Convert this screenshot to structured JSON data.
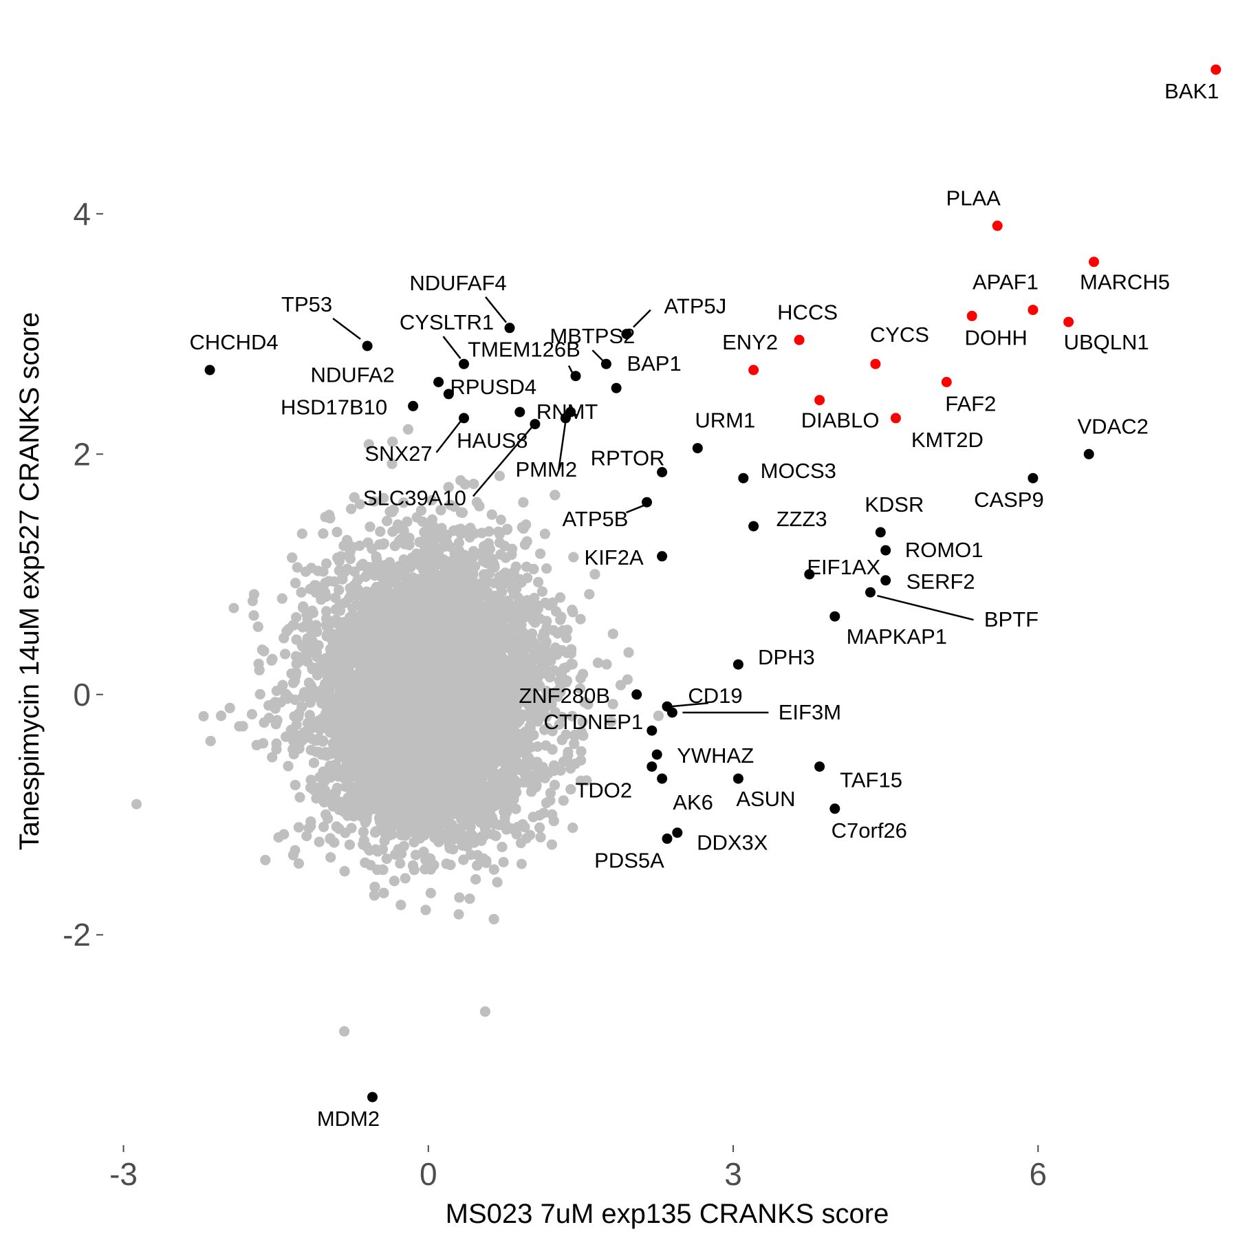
{
  "chart_data": {
    "type": "scatter",
    "title": "",
    "xlabel": "MS023 7uM exp135 CRANKS score",
    "ylabel": "Tanespimycin 14uM exp527 CRANKS score",
    "xlim": [
      -3.2,
      7.9
    ],
    "ylim": [
      -3.75,
      5.55
    ],
    "xticks": [
      -3,
      0,
      3,
      6
    ],
    "yticks": [
      -2,
      0,
      2,
      4
    ],
    "grid": false,
    "legend": "none",
    "colors": {
      "background": "#bfbfbf",
      "highlight": "#ff0000",
      "labeled": "#000000"
    },
    "background_points": {
      "description_count": 18000,
      "x_mean": 0.0,
      "x_sd": 0.55,
      "y_mean": 0.0,
      "y_sd": 0.55
    },
    "series": [
      {
        "name": "red",
        "color": "#ff0000",
        "points": [
          {
            "label": "BAK1",
            "x": 7.75,
            "y": 5.2
          },
          {
            "label": "PLAA",
            "x": 5.6,
            "y": 3.9
          },
          {
            "label": "MARCH5",
            "x": 6.55,
            "y": 3.6
          },
          {
            "label": "APAF1",
            "x": 5.95,
            "y": 3.2
          },
          {
            "label": "DOHH",
            "x": 5.35,
            "y": 3.15
          },
          {
            "label": "UBQLN1",
            "x": 6.3,
            "y": 3.1
          },
          {
            "label": "HCCS",
            "x": 3.65,
            "y": 2.95
          },
          {
            "label": "CYCS",
            "x": 4.4,
            "y": 2.75
          },
          {
            "label": "ENY2",
            "x": 3.2,
            "y": 2.7
          },
          {
            "label": "FAF2",
            "x": 5.1,
            "y": 2.6
          },
          {
            "label": "DIABLO",
            "x": 3.85,
            "y": 2.45
          },
          {
            "label": "KMT2D",
            "x": 4.6,
            "y": 2.3
          }
        ]
      },
      {
        "name": "black",
        "color": "#000000",
        "points": [
          {
            "label": "VDAC2",
            "x": 6.5,
            "y": 2.0
          },
          {
            "label": "CASP9",
            "x": 5.95,
            "y": 1.8
          },
          {
            "label": "CHCHD4",
            "x": -2.15,
            "y": 2.7
          },
          {
            "label": "TP53",
            "x": -0.6,
            "y": 2.9
          },
          {
            "label": "NDUFAF4",
            "x": 0.8,
            "y": 3.05
          },
          {
            "label": "CYSLTR1",
            "x": 0.35,
            "y": 2.75
          },
          {
            "label": "MBTPS2",
            "x": 1.75,
            "y": 2.75
          },
          {
            "label": "ATP5J",
            "x": 1.95,
            "y": 3.0
          },
          {
            "label": "TMEM126B",
            "x": 1.45,
            "y": 2.65
          },
          {
            "label": "BAP1",
            "x": 1.85,
            "y": 2.55
          },
          {
            "label": "NDUFA2",
            "x": 0.1,
            "y": 2.6
          },
          {
            "label": "RPUSD4",
            "x": 0.2,
            "y": 2.5
          },
          {
            "label": "HSD17B10",
            "x": -0.15,
            "y": 2.4
          },
          {
            "label": "SNX27",
            "x": 0.35,
            "y": 2.3
          },
          {
            "label": "HAUS8",
            "x": 0.9,
            "y": 2.35
          },
          {
            "label": "SLC39A10",
            "x": 1.05,
            "y": 2.25
          },
          {
            "label": "RNMT",
            "x": 1.4,
            "y": 2.35
          },
          {
            "label": "PMM2",
            "x": 1.35,
            "y": 2.3
          },
          {
            "label": "URM1",
            "x": 2.65,
            "y": 2.05
          },
          {
            "label": "RPTOR",
            "x": 2.3,
            "y": 1.85
          },
          {
            "label": "MOCS3",
            "x": 3.1,
            "y": 1.8
          },
          {
            "label": "ATP5B",
            "x": 2.15,
            "y": 1.6
          },
          {
            "label": "ZZZ3",
            "x": 3.2,
            "y": 1.4
          },
          {
            "label": "KDSR",
            "x": 4.45,
            "y": 1.35
          },
          {
            "label": "ROMO1",
            "x": 4.5,
            "y": 1.2
          },
          {
            "label": "KIF2A",
            "x": 2.3,
            "y": 1.15
          },
          {
            "label": "SERF2",
            "x": 4.5,
            "y": 0.95
          },
          {
            "label": "EIF1AX",
            "x": 3.75,
            "y": 1.0
          },
          {
            "label": "BPTF",
            "x": 4.35,
            "y": 0.85
          },
          {
            "label": "MAPKAP1",
            "x": 4.0,
            "y": 0.65
          },
          {
            "label": "DPH3",
            "x": 3.05,
            "y": 0.25
          },
          {
            "label": "CD19",
            "x": 2.35,
            "y": -0.1
          },
          {
            "label": "EIF3M",
            "x": 2.4,
            "y": -0.15
          },
          {
            "label": "ZNF280B",
            "x": 2.05,
            "y": 0.0
          },
          {
            "label": "CTDNEP1",
            "x": 2.2,
            "y": -0.3
          },
          {
            "label": "YWHAZ",
            "x": 2.25,
            "y": -0.5
          },
          {
            "label": "TDO2",
            "x": 2.2,
            "y": -0.6
          },
          {
            "label": "AK6",
            "x": 2.3,
            "y": -0.7
          },
          {
            "label": "ASUN",
            "x": 3.05,
            "y": -0.7
          },
          {
            "label": "TAF15",
            "x": 3.85,
            "y": -0.6
          },
          {
            "label": "C7orf26",
            "x": 4.0,
            "y": -0.95
          },
          {
            "label": "DDX3X",
            "x": 2.45,
            "y": -1.15
          },
          {
            "label": "PDS5A",
            "x": 2.35,
            "y": -1.2
          },
          {
            "label": "MDM2",
            "x": -0.55,
            "y": -3.35
          }
        ]
      }
    ]
  }
}
